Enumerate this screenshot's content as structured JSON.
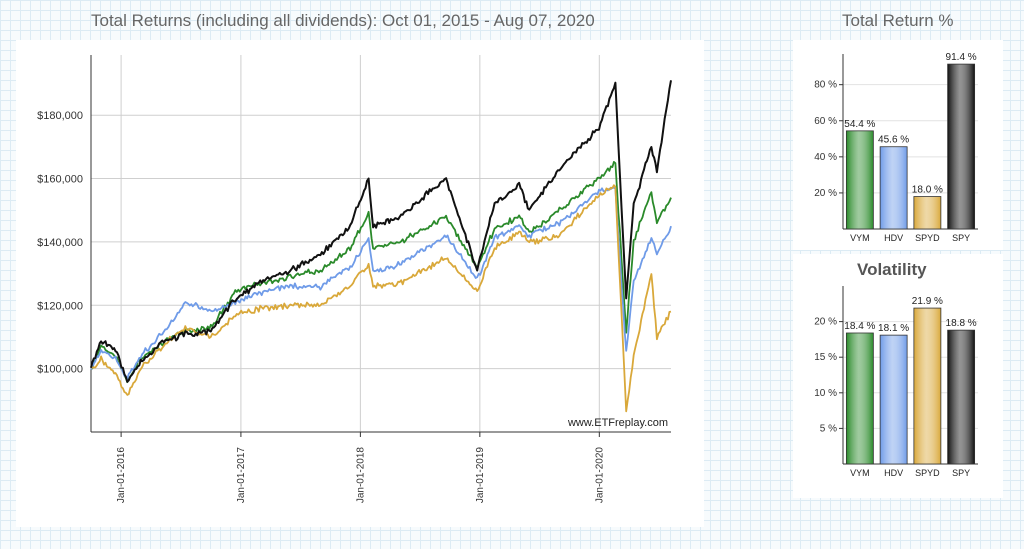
{
  "main_title": "Total Returns (including all dividends): Oct 01, 2015 - Aug 07, 2020",
  "return_title": "Total Return %",
  "vol_title": "Volatility",
  "watermark": "www.ETFreplay.com",
  "colors": {
    "VYM": "#2a8a2a",
    "HDV": "#6f9be8",
    "SPYD": "#d9a83a",
    "SPY": "#111111"
  },
  "chart_data": [
    {
      "type": "line",
      "title": "Total Returns (including all dividends): Oct 01, 2015 - Aug 07, 2020",
      "x_range": [
        "2015-10-01",
        "2020-08-07"
      ],
      "x_ticks": [
        "Jan-01-2016",
        "Jan-01-2017",
        "Jan-01-2018",
        "Jan-01-2019",
        "Jan-01-2020"
      ],
      "y_ticks": [
        "$100,000",
        "$120,000",
        "$140,000",
        "$160,000",
        "$180,000"
      ],
      "ylim": [
        80000,
        199000
      ],
      "grid": true,
      "series": [
        {
          "name": "VYM",
          "points": [
            [
              "2015-10-01",
              100000
            ],
            [
              "2015-11-01",
              107000
            ],
            [
              "2015-12-15",
              104000
            ],
            [
              "2016-01-20",
              96000
            ],
            [
              "2016-03-01",
              103000
            ],
            [
              "2016-05-01",
              108000
            ],
            [
              "2016-07-15",
              112000
            ],
            [
              "2016-10-01",
              113000
            ],
            [
              "2016-12-15",
              124000
            ],
            [
              "2017-03-01",
              127000
            ],
            [
              "2017-06-01",
              129000
            ],
            [
              "2017-09-01",
              131000
            ],
            [
              "2017-12-01",
              138000
            ],
            [
              "2018-01-26",
              149000
            ],
            [
              "2018-02-09",
              138000
            ],
            [
              "2018-05-01",
              140000
            ],
            [
              "2018-09-20",
              148000
            ],
            [
              "2018-12-24",
              132000
            ],
            [
              "2019-02-15",
              144000
            ],
            [
              "2019-05-01",
              148000
            ],
            [
              "2019-06-01",
              143000
            ],
            [
              "2019-09-01",
              150000
            ],
            [
              "2019-12-31",
              160000
            ],
            [
              "2020-02-19",
              165000
            ],
            [
              "2020-03-23",
              112000
            ],
            [
              "2020-04-15",
              140000
            ],
            [
              "2020-06-08",
              156000
            ],
            [
              "2020-06-25",
              146000
            ],
            [
              "2020-08-07",
              154000
            ]
          ]
        },
        {
          "name": "HDV",
          "points": [
            [
              "2015-10-01",
              100000
            ],
            [
              "2015-11-01",
              106000
            ],
            [
              "2015-12-15",
              103000
            ],
            [
              "2016-01-20",
              97000
            ],
            [
              "2016-03-01",
              104000
            ],
            [
              "2016-05-15",
              112000
            ],
            [
              "2016-07-15",
              121000
            ],
            [
              "2016-10-01",
              118000
            ],
            [
              "2016-12-15",
              121000
            ],
            [
              "2017-03-01",
              124000
            ],
            [
              "2017-06-01",
              126000
            ],
            [
              "2017-09-01",
              126000
            ],
            [
              "2017-12-01",
              132000
            ],
            [
              "2018-01-26",
              141000
            ],
            [
              "2018-02-09",
              130000
            ],
            [
              "2018-05-01",
              133000
            ],
            [
              "2018-09-20",
              142000
            ],
            [
              "2018-12-24",
              128000
            ],
            [
              "2019-02-15",
              141000
            ],
            [
              "2019-05-01",
              145000
            ],
            [
              "2019-06-01",
              142000
            ],
            [
              "2019-09-01",
              146000
            ],
            [
              "2019-12-31",
              156000
            ],
            [
              "2020-02-19",
              157000
            ],
            [
              "2020-03-23",
              105000
            ],
            [
              "2020-04-15",
              128000
            ],
            [
              "2020-06-08",
              141000
            ],
            [
              "2020-06-25",
              136000
            ],
            [
              "2020-08-07",
              145000
            ]
          ]
        },
        {
          "name": "SPYD",
          "points": [
            [
              "2015-10-01",
              100000
            ],
            [
              "2015-11-01",
              103000
            ],
            [
              "2015-12-15",
              98000
            ],
            [
              "2016-01-20",
              91000
            ],
            [
              "2016-03-01",
              100000
            ],
            [
              "2016-05-15",
              108000
            ],
            [
              "2016-07-15",
              113000
            ],
            [
              "2016-10-01",
              110000
            ],
            [
              "2016-12-15",
              117000
            ],
            [
              "2017-03-01",
              119000
            ],
            [
              "2017-06-01",
              120000
            ],
            [
              "2017-09-01",
              120000
            ],
            [
              "2017-12-01",
              126000
            ],
            [
              "2018-01-26",
              133000
            ],
            [
              "2018-02-09",
              126000
            ],
            [
              "2018-05-01",
              127000
            ],
            [
              "2018-09-20",
              135000
            ],
            [
              "2018-12-24",
              124000
            ],
            [
              "2019-02-15",
              138000
            ],
            [
              "2019-05-01",
              143000
            ],
            [
              "2019-06-01",
              140000
            ],
            [
              "2019-09-01",
              142000
            ],
            [
              "2019-12-31",
              155000
            ],
            [
              "2020-02-19",
              158000
            ],
            [
              "2020-03-23",
              86000
            ],
            [
              "2020-04-15",
              104000
            ],
            [
              "2020-06-08",
              130000
            ],
            [
              "2020-06-25",
              110000
            ],
            [
              "2020-08-07",
              118000
            ]
          ]
        },
        {
          "name": "SPY",
          "points": [
            [
              "2015-10-01",
              100000
            ],
            [
              "2015-11-01",
              109000
            ],
            [
              "2015-12-15",
              106000
            ],
            [
              "2016-01-20",
              96000
            ],
            [
              "2016-03-01",
              102000
            ],
            [
              "2016-05-01",
              108000
            ],
            [
              "2016-07-15",
              111000
            ],
            [
              "2016-10-01",
              112000
            ],
            [
              "2016-12-15",
              122000
            ],
            [
              "2017-03-01",
              127000
            ],
            [
              "2017-06-01",
              131000
            ],
            [
              "2017-09-01",
              136000
            ],
            [
              "2017-12-01",
              145000
            ],
            [
              "2018-01-26",
              160000
            ],
            [
              "2018-02-09",
              145000
            ],
            [
              "2018-05-01",
              148000
            ],
            [
              "2018-09-20",
              160000
            ],
            [
              "2018-12-24",
              131000
            ],
            [
              "2019-02-15",
              152000
            ],
            [
              "2019-05-01",
              158000
            ],
            [
              "2019-06-01",
              150000
            ],
            [
              "2019-09-01",
              163000
            ],
            [
              "2019-12-31",
              176000
            ],
            [
              "2020-02-19",
              190000
            ],
            [
              "2020-03-23",
              122000
            ],
            [
              "2020-04-15",
              152000
            ],
            [
              "2020-06-08",
              170000
            ],
            [
              "2020-06-25",
              163000
            ],
            [
              "2020-08-07",
              191000
            ]
          ]
        }
      ]
    },
    {
      "type": "bar",
      "title": "Total Return %",
      "categories": [
        "VYM",
        "HDV",
        "SPYD",
        "SPY"
      ],
      "values": [
        54.4,
        45.6,
        18.0,
        91.4
      ],
      "labels": [
        "54.4 %",
        "45.6 %",
        "18.0 %",
        "91.4 %"
      ],
      "y_ticks": [
        20,
        40,
        60,
        80
      ],
      "y_tick_labels": [
        "20 %",
        "40 %",
        "60 %",
        "80 %"
      ],
      "ylim": [
        0,
        97
      ]
    },
    {
      "type": "bar",
      "title": "Volatility",
      "categories": [
        "VYM",
        "HDV",
        "SPYD",
        "SPY"
      ],
      "values": [
        18.4,
        18.1,
        21.9,
        18.8
      ],
      "labels": [
        "18.4 %",
        "18.1 %",
        "21.9 %",
        "18.8 %"
      ],
      "y_ticks": [
        5,
        10,
        15,
        20
      ],
      "y_tick_labels": [
        "5 %",
        "10 %",
        "15 %",
        "20 %"
      ],
      "ylim": [
        0,
        25
      ]
    }
  ]
}
